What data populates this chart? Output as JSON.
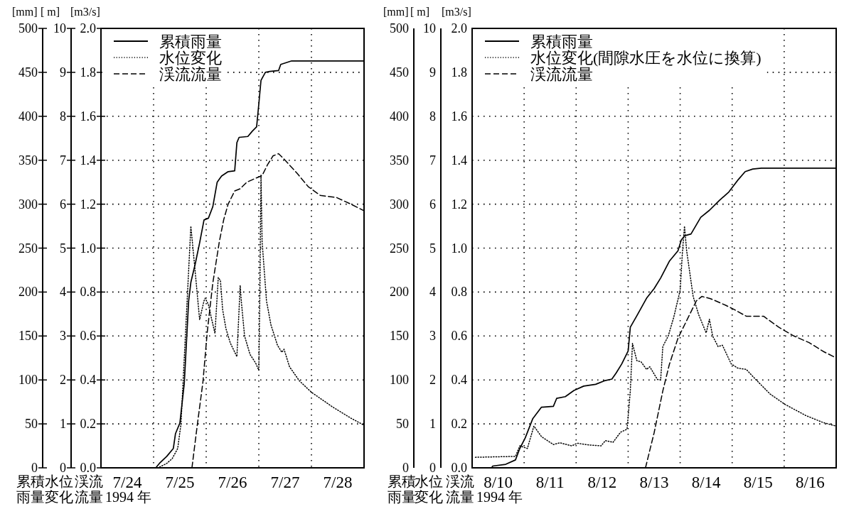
{
  "chart_data": [
    {
      "type": "line",
      "xlim": [
        "1994-07-24",
        "1994-07-29"
      ],
      "xticks": [
        {
          "value": "1994-07-24T12:00",
          "label": "7/24"
        },
        {
          "value": "1994-07-25T00:00",
          "label": null
        },
        {
          "value": "1994-07-25T12:00",
          "label": "7/25"
        },
        {
          "value": "1994-07-26T00:00",
          "label": null
        },
        {
          "value": "1994-07-26T12:00",
          "label": "7/26"
        },
        {
          "value": "1994-07-27T00:00",
          "label": null
        },
        {
          "value": "1994-07-27T12:00",
          "label": "7/27"
        },
        {
          "value": "1994-07-28T00:00",
          "label": null
        },
        {
          "value": "1994-07-28T12:00",
          "label": "7/28"
        }
      ],
      "xlabel": "1994 年",
      "ylabel": "[mm]",
      "y2label": "[ m]",
      "y3label": "[m3/s]",
      "ylim": [
        0,
        500
      ],
      "yticks": [
        0,
        50,
        100,
        150,
        200,
        250,
        300,
        350,
        400,
        450,
        500
      ],
      "y2lim": [
        0,
        10
      ],
      "y2ticks": [
        0,
        1,
        2,
        3,
        4,
        5,
        6,
        7,
        8,
        9,
        10
      ],
      "y3lim": [
        0,
        2
      ],
      "y3ticks": [
        {
          "value": 0,
          "label": "0.0"
        },
        {
          "value": 0.2,
          "label": "0.2"
        },
        {
          "value": 0.4,
          "label": "0.4"
        },
        {
          "value": 0.6,
          "label": "0.6"
        },
        {
          "value": 0.8,
          "label": "0.8"
        },
        {
          "value": 1,
          "label": "1.0"
        },
        {
          "value": 1.2,
          "label": "1.2"
        },
        {
          "value": 1.4,
          "label": "1.4"
        },
        {
          "value": 1.6,
          "label": "1.6"
        },
        {
          "value": 1.8,
          "label": "1.8"
        },
        {
          "value": 2,
          "label": "2.0"
        }
      ],
      "annotations": [
        "累積",
        "雨量",
        "水位",
        "変化",
        "渓流",
        "流量"
      ],
      "grid": true,
      "legend": "top left",
      "series": [
        {
          "name": "累積雨量",
          "color": "#000000",
          "line_style": "solid",
          "x": [
            "1994-07-24T00:00",
            "1994-07-25T01:00",
            "1994-07-25T03:00",
            "1994-07-25T06:00",
            "1994-07-25T09:00",
            "1994-07-25T10:00",
            "1994-07-25T12:00",
            "1994-07-25T14:00",
            "1994-07-25T16:00",
            "1994-07-25T17:00",
            "1994-07-25T19:00",
            "1994-07-25T21:00",
            "1994-07-25T23:00",
            "1994-07-26T01:00",
            "1994-07-26T03:00",
            "1994-07-26T05:00",
            "1994-07-26T07:00",
            "1994-07-26T10:00",
            "1994-07-26T13:00",
            "1994-07-26T14:00",
            "1994-07-26T15:00",
            "1994-07-26T19:00",
            "1994-07-26T21:00",
            "1994-07-26T23:00",
            "1994-07-27T00:00",
            "1994-07-27T01:00",
            "1994-07-27T03:00",
            "1994-07-27T05:00",
            "1994-07-27T09:00",
            "1994-07-27T10:00",
            "1994-07-27T15:00",
            "1994-07-29T00:00"
          ],
          "values": [
            0,
            0,
            6,
            13,
            22,
            39,
            51,
            96,
            190,
            211,
            232,
            256,
            282,
            284,
            297,
            325,
            332,
            337,
            338,
            370,
            376,
            377,
            383,
            388,
            414,
            441,
            450,
            451,
            452,
            459,
            463,
            463
          ]
        },
        {
          "name": "水位変化",
          "color": "#000000",
          "line_style": "dotted",
          "axis": "y2",
          "x": [
            "1994-07-24T00:00",
            "1994-07-25T02:00",
            "1994-07-25T06:00",
            "1994-07-25T08:30",
            "1994-07-25T11:00",
            "1994-07-25T12:30",
            "1994-07-25T14:00",
            "1994-07-25T17:00",
            "1994-07-25T19:00",
            "1994-07-25T21:00",
            "1994-07-25T23:00",
            "1994-07-25T23:30",
            "1994-07-26T01:00",
            "1994-07-26T02:30",
            "1994-07-26T04:00",
            "1994-07-26T05:30",
            "1994-07-26T06:30",
            "1994-07-26T07:30",
            "1994-07-26T09:00",
            "1994-07-26T11:00",
            "1994-07-26T14:00",
            "1994-07-26T15:30",
            "1994-07-26T16:00",
            "1994-07-26T17:30",
            "1994-07-26T20:00",
            "1994-07-26T22:30",
            "1994-07-27T00:00",
            "1994-07-27T00:30",
            "1994-07-27T01:00",
            "1994-07-27T01:30",
            "1994-07-27T03:30",
            "1994-07-27T05:30",
            "1994-07-27T08:30",
            "1994-07-27T10:30",
            "1994-07-27T11:30",
            "1994-07-27T14:00",
            "1994-07-27T18:30",
            "1994-07-28T00:00",
            "1994-07-28T09:30",
            "1994-07-28T18:00",
            "1994-07-29T00:00"
          ],
          "values": [
            0,
            0,
            0.1,
            0.21,
            0.44,
            1.0,
            2.5,
            5.5,
            4.45,
            3.37,
            3.8,
            3.86,
            3.72,
            3.38,
            3.06,
            4.33,
            4.26,
            3.6,
            3.17,
            2.84,
            2.53,
            4.15,
            3.8,
            3.0,
            2.58,
            2.39,
            2.22,
            4.08,
            6.66,
            5.15,
            3.8,
            3.26,
            2.79,
            2.63,
            2.7,
            2.3,
            1.98,
            1.72,
            1.39,
            1.13,
            0.97
          ]
        },
        {
          "name": "渓流流量",
          "color": "#000000",
          "line_style": "dashed",
          "axis": "y3",
          "x": [
            "1994-07-25T17:30",
            "1994-07-25T20:00",
            "1994-07-25T22:30",
            "1994-07-26T00:30",
            "1994-07-26T03:00",
            "1994-07-26T06:00",
            "1994-07-26T08:00",
            "1994-07-26T10:00",
            "1994-07-26T13:00",
            "1994-07-26T15:30",
            "1994-07-26T18:30",
            "1994-07-26T23:00",
            "1994-07-27T01:30",
            "1994-07-27T04:00",
            "1994-07-27T06:30",
            "1994-07-27T09:00",
            "1994-07-27T12:00",
            "1994-07-27T17:30",
            "1994-07-27T22:30",
            "1994-07-28T04:00",
            "1994-07-28T11:30",
            "1994-07-28T18:00",
            "1994-07-29T00:00"
          ],
          "values": [
            0,
            0.2,
            0.39,
            0.62,
            0.84,
            1.03,
            1.13,
            1.2,
            1.26,
            1.27,
            1.3,
            1.32,
            1.33,
            1.38,
            1.42,
            1.43,
            1.4,
            1.34,
            1.28,
            1.24,
            1.23,
            1.2,
            1.17
          ]
        }
      ]
    },
    {
      "type": "line",
      "xlim": [
        "1994-08-10",
        "1994-08-17"
      ],
      "xticks": [
        {
          "value": "1994-08-10T12:00",
          "label": "8/10"
        },
        {
          "value": "1994-08-11T00:00",
          "label": null
        },
        {
          "value": "1994-08-11T12:00",
          "label": "8/11"
        },
        {
          "value": "1994-08-12T00:00",
          "label": null
        },
        {
          "value": "1994-08-12T12:00",
          "label": "8/12"
        },
        {
          "value": "1994-08-13T00:00",
          "label": null
        },
        {
          "value": "1994-08-13T12:00",
          "label": "8/13"
        },
        {
          "value": "1994-08-14T00:00",
          "label": null
        },
        {
          "value": "1994-08-14T12:00",
          "label": "8/14"
        },
        {
          "value": "1994-08-15T00:00",
          "label": null
        },
        {
          "value": "1994-08-15T12:00",
          "label": "8/15"
        },
        {
          "value": "1994-08-16T00:00",
          "label": null
        },
        {
          "value": "1994-08-16T12:00",
          "label": "8/16"
        }
      ],
      "xlabel": "1994 年",
      "ylabel": "[mm]",
      "y2label": "[ m]",
      "y3label": "[m3/s]",
      "ylim": [
        0,
        500
      ],
      "yticks": [
        0,
        50,
        100,
        150,
        200,
        250,
        300,
        350,
        400,
        450,
        500
      ],
      "y2lim": [
        0,
        10
      ],
      "y2ticks": [
        0,
        1,
        2,
        3,
        4,
        5,
        6,
        7,
        8,
        9,
        10
      ],
      "y3lim": [
        0,
        2
      ],
      "y3ticks": [
        {
          "value": 0,
          "label": "0.0"
        },
        {
          "value": 0.2,
          "label": "0.2"
        },
        {
          "value": 0.4,
          "label": "0.4"
        },
        {
          "value": 0.6,
          "label": "0.6"
        },
        {
          "value": 0.8,
          "label": "0.8"
        },
        {
          "value": 1,
          "label": "1.0"
        },
        {
          "value": 1.2,
          "label": "1.2"
        },
        {
          "value": 1.4,
          "label": "1.4"
        },
        {
          "value": 1.6,
          "label": "1.6"
        },
        {
          "value": 1.8,
          "label": "1.8"
        },
        {
          "value": 2,
          "label": "2.0"
        }
      ],
      "annotations": [
        "累積",
        "雨量",
        "水位",
        "変化",
        "渓流",
        "流量"
      ],
      "grid": true,
      "legend": "top left",
      "series": [
        {
          "name": "累積雨量",
          "color": "#000000",
          "line_style": "solid",
          "x": [
            "1994-08-10T00:00",
            "1994-08-10T09:00",
            "1994-08-10T09:30",
            "1994-08-10T15:30",
            "1994-08-10T20:00",
            "1994-08-10T22:00",
            "1994-08-11T00:30",
            "1994-08-11T04:00",
            "1994-08-11T08:00",
            "1994-08-11T13:30",
            "1994-08-11T15:00",
            "1994-08-11T19:00",
            "1994-08-11T23:00",
            "1994-08-12T03:30",
            "1994-08-12T09:00",
            "1994-08-12T13:00",
            "1994-08-12T16:30",
            "1994-08-12T18:30",
            "1994-08-12T21:00",
            "1994-08-13T00:00",
            "1994-08-13T01:00",
            "1994-08-13T04:00",
            "1994-08-13T08:30",
            "1994-08-13T12:00",
            "1994-08-13T15:00",
            "1994-08-13T19:00",
            "1994-08-13T23:00",
            "1994-08-14T00:30",
            "1994-08-14T02:00",
            "1994-08-14T05:00",
            "1994-08-14T09:30",
            "1994-08-14T13:30",
            "1994-08-14T18:00",
            "1994-08-14T22:30",
            "1994-08-15T02:30",
            "1994-08-15T06:00",
            "1994-08-15T09:30",
            "1994-08-15T13:30",
            "1994-08-17T00:00"
          ],
          "values": [
            0,
            0,
            2,
            4,
            9,
            22,
            34,
            56,
            69,
            70,
            79,
            81,
            88,
            93,
            95,
            99,
            101,
            108,
            118,
            133,
            160,
            173,
            193,
            204,
            216,
            235,
            247,
            259,
            264,
            266,
            285,
            293,
            304,
            314,
            327,
            337,
            340,
            341,
            341
          ]
        },
        {
          "name": "水位変化(間隙水圧を水位に換算)",
          "color": "#000000",
          "line_style": "dotted",
          "axis": "y2",
          "x": [
            "1994-08-10T01:30",
            "1994-08-10T20:00",
            "1994-08-10T22:00",
            "1994-08-11T01:30",
            "1994-08-11T04:30",
            "1994-08-11T08:00",
            "1994-08-11T13:30",
            "1994-08-11T16:30",
            "1994-08-11T22:00",
            "1994-08-12T00:30",
            "1994-08-12T06:00",
            "1994-08-12T11:30",
            "1994-08-12T13:30",
            "1994-08-12T17:00",
            "1994-08-12T20:30",
            "1994-08-12T23:30",
            "1994-08-13T01:00",
            "1994-08-13T02:00",
            "1994-08-13T04:00",
            "1994-08-13T06:00",
            "1994-08-13T08:30",
            "1994-08-13T10:00",
            "1994-08-13T13:30",
            "1994-08-13T15:00",
            "1994-08-13T16:00",
            "1994-08-13T18:30",
            "1994-08-13T21:00",
            "1994-08-14T00:00",
            "1994-08-14T01:00",
            "1994-08-14T02:00",
            "1994-08-14T03:00",
            "1994-08-14T06:00",
            "1994-08-14T08:30",
            "1994-08-14T12:00",
            "1994-08-14T13:30",
            "1994-08-14T15:00",
            "1994-08-14T17:30",
            "1994-08-14T19:30",
            "1994-08-14T23:30",
            "1994-08-15T02:30",
            "1994-08-15T06:30",
            "1994-08-15T10:30",
            "1994-08-15T17:30",
            "1994-08-16T00:30",
            "1994-08-16T10:00",
            "1994-08-16T18:00",
            "1994-08-17T00:00"
          ],
          "values": [
            0.24,
            0.26,
            0.5,
            0.44,
            0.95,
            0.71,
            0.53,
            0.57,
            0.5,
            0.56,
            0.52,
            0.5,
            0.62,
            0.58,
            0.81,
            0.88,
            1.75,
            2.83,
            2.44,
            2.41,
            2.24,
            2.3,
            2.01,
            2.0,
            2.76,
            3.0,
            3.42,
            4.04,
            4.87,
            5.5,
            4.94,
            3.9,
            3.49,
            3.07,
            3.38,
            3.0,
            2.76,
            2.79,
            2.37,
            2.27,
            2.24,
            2.03,
            1.68,
            1.44,
            1.19,
            1.03,
            0.95
          ]
        },
        {
          "name": "渓流流量",
          "color": "#000000",
          "line_style": "dashed",
          "axis": "y3",
          "x": [
            "1994-08-13T08:00",
            "1994-08-13T12:00",
            "1994-08-13T16:00",
            "1994-08-13T19:00",
            "1994-08-13T23:00",
            "1994-08-14T03:00",
            "1994-08-14T07:30",
            "1994-08-14T10:00",
            "1994-08-14T14:00",
            "1994-08-14T21:00",
            "1994-08-15T01:00",
            "1994-08-15T06:30",
            "1994-08-15T14:30",
            "1994-08-15T21:30",
            "1994-08-16T04:30",
            "1994-08-16T11:30",
            "1994-08-16T18:00",
            "1994-08-17T00:00"
          ],
          "values": [
            0,
            0.16,
            0.35,
            0.47,
            0.59,
            0.67,
            0.76,
            0.78,
            0.77,
            0.74,
            0.72,
            0.69,
            0.69,
            0.64,
            0.6,
            0.57,
            0.53,
            0.5
          ]
        }
      ]
    }
  ]
}
